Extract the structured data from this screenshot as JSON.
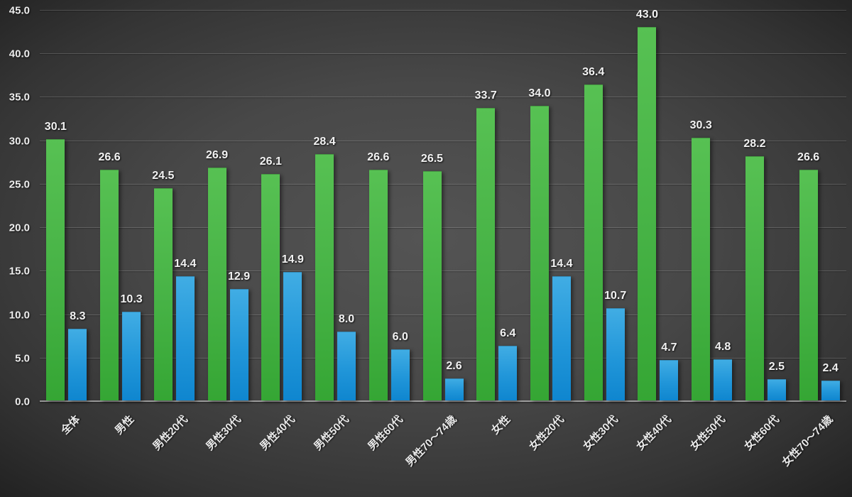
{
  "chart_data": {
    "type": "bar",
    "title": "",
    "xlabel": "",
    "ylabel": "",
    "categories": [
      "全体",
      "男性",
      "男性20代",
      "男性30代",
      "男性40代",
      "男性50代",
      "男性60代",
      "男性70〜74歳",
      "女性",
      "女性20代",
      "女性30代",
      "女性40代",
      "女性50代",
      "女性60代",
      "女性70〜74歳"
    ],
    "series": [
      {
        "name": "green-series",
        "color": "#46b245",
        "values": [
          30.1,
          26.6,
          24.5,
          26.9,
          26.1,
          28.4,
          26.6,
          26.5,
          33.7,
          34.0,
          36.4,
          43.0,
          30.3,
          28.2,
          26.6
        ]
      },
      {
        "name": "blue-series",
        "color": "#2196d9",
        "values": [
          8.3,
          10.3,
          14.4,
          12.9,
          14.9,
          8.0,
          6.0,
          2.6,
          6.4,
          14.4,
          10.7,
          4.7,
          4.8,
          2.5,
          2.4
        ]
      }
    ],
    "ylim": [
      0,
      45
    ],
    "ytick_step": 5,
    "ytick_labels": [
      "0.0",
      "5.0",
      "10.0",
      "15.0",
      "20.0",
      "25.0",
      "30.0",
      "35.0",
      "40.0",
      "45.0"
    ],
    "value_label_decimals": 1,
    "grid": true,
    "legend_position": "none",
    "background_color": "#3d3d3d",
    "text_color": "#f2f2f2"
  }
}
